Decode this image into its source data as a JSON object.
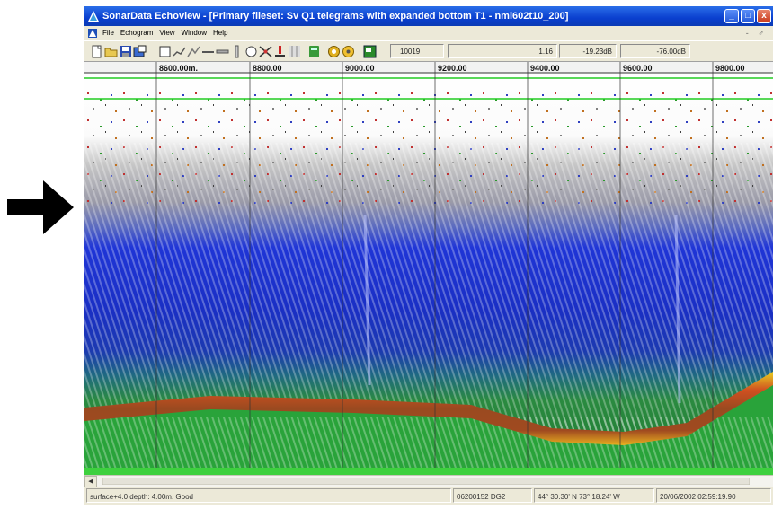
{
  "window": {
    "title": "SonarData Echoview - [Primary fileset: Sv Q1 telegrams with expanded bottom T1 - nml602t10_200]",
    "controls": [
      "_",
      "□",
      "x"
    ]
  },
  "menu": {
    "items": [
      "File",
      "Echogram",
      "View",
      "Window",
      "Help"
    ],
    "mdi_controls": "- ♂"
  },
  "toolbar": {
    "ping_field": "10019",
    "range_field": "1.16",
    "sv_field": "-19.23dB",
    "threshold_field": "-76.00dB"
  },
  "echogram": {
    "distance_labels": [
      "8600.00m.",
      "8800.00",
      "9000.00",
      "9200.00",
      "9400.00",
      "9600.00",
      "9800.00"
    ]
  },
  "statusbar": {
    "depth_info": "surface+4.0 depth: 4.00m. Good",
    "file_info": "06200152 DG2",
    "position": "44° 30.30' N 73° 18.24' W",
    "datetime": "20/06/2002 02:59:19.90"
  }
}
